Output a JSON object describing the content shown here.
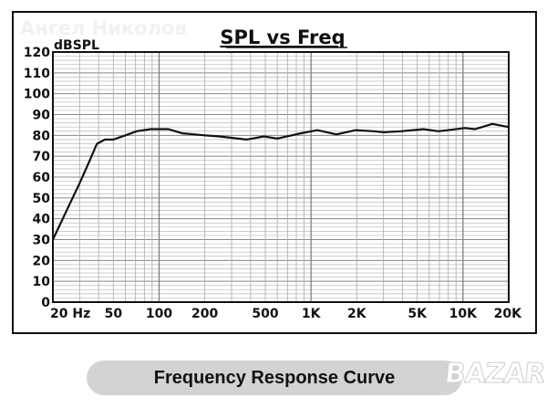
{
  "chart_data": {
    "type": "line",
    "title": "SPL vs Freq",
    "ylabel": "dBSPL",
    "xlabel": "",
    "xscale": "log",
    "xlim": [
      20,
      20000
    ],
    "ylim": [
      0,
      120
    ],
    "grid": true,
    "yticks": [
      0,
      10,
      20,
      30,
      40,
      50,
      60,
      70,
      80,
      90,
      100,
      110,
      120
    ],
    "xticks": [
      {
        "value": 20,
        "label": "20  Hz"
      },
      {
        "value": 50,
        "label": "50"
      },
      {
        "value": 100,
        "label": "100"
      },
      {
        "value": 200,
        "label": "200"
      },
      {
        "value": 500,
        "label": "500"
      },
      {
        "value": 1000,
        "label": "1K"
      },
      {
        "value": 2000,
        "label": "2K"
      },
      {
        "value": 5000,
        "label": "5K"
      },
      {
        "value": 10000,
        "label": "10K"
      },
      {
        "value": 20000,
        "label": "20K"
      }
    ],
    "series": [
      {
        "name": "SPL",
        "x": [
          20,
          25,
          30,
          35,
          39,
          44,
          50,
          60,
          71,
          88,
          115,
          142,
          200,
          250,
          375,
          490,
          600,
          860,
          1100,
          1470,
          1970,
          2600,
          3000,
          3900,
          5500,
          6900,
          10300,
          12000,
          15600,
          20000
        ],
        "y": [
          30,
          45,
          57,
          68,
          76,
          78,
          78,
          80,
          82,
          83,
          83,
          81,
          80,
          79.5,
          78,
          79.5,
          78.5,
          81,
          82.5,
          80.5,
          82.5,
          82,
          81.5,
          82,
          83,
          82,
          83.5,
          83,
          85.5,
          84
        ]
      }
    ]
  },
  "watermark": "Ангел Николов",
  "caption": "Frequency Response Curve",
  "logo": "BAZAR"
}
